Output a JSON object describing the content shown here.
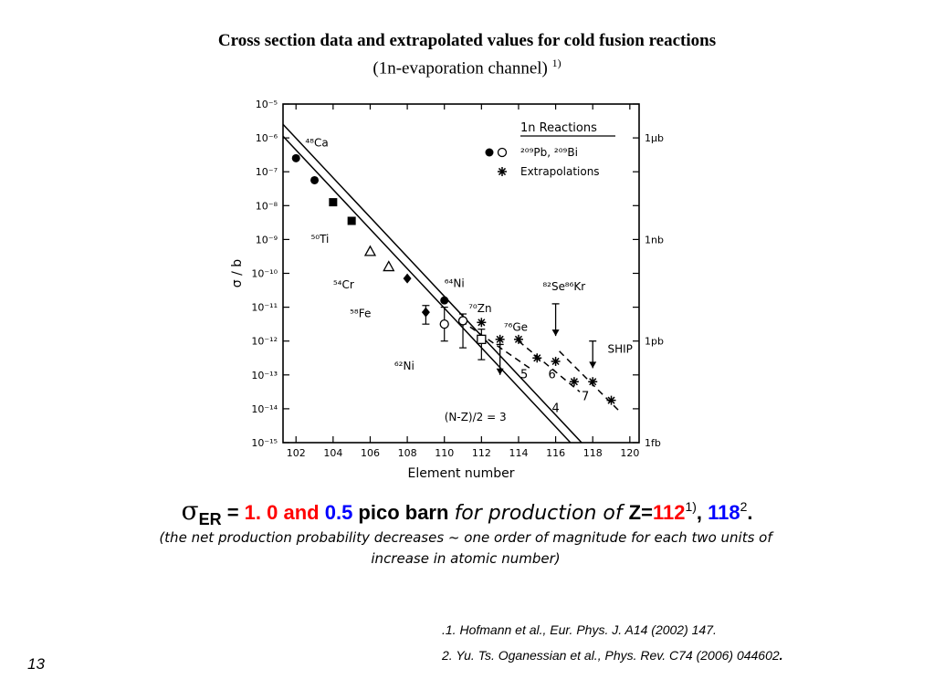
{
  "slide": {
    "title_line1": "Cross section data and extrapolated values for cold fusion reactions",
    "title_line2": "(1n-evaporation channel)",
    "title_line2_sup": "1)",
    "page_number": "13"
  },
  "summary": {
    "sigma_symbol": "σ",
    "sigma_sub": "ER",
    "equals": " = ",
    "value1": "1. 0",
    "and": " and ",
    "value2": "0.5",
    "unit": " pico barn ",
    "for_production": "for production of ",
    "z_label": "Z",
    "z_equals": "=",
    "z1": "112",
    "z1_sup": "1)",
    "comma": ", ",
    "z2": "118",
    "z2_sup": "2",
    "period": ".",
    "note_line1": "(the net production probability decreases ~ one order of magnitude for each two units of",
    "note_line2": "increase in atomic number)",
    "colors": {
      "red": "#ff0000",
      "blue": "#0000ff"
    }
  },
  "references": {
    "ref1": ".1. Hofmann et al., Eur. Phys. J.  A14 (2002) 147.",
    "ref2": "2. Yu. Ts. Oganessian et al., Phys. Rev.  C74 (2006) 044602",
    "ref2_end": "."
  },
  "chart_data": {
    "type": "scatter",
    "xlabel": "Element number",
    "ylabel": "σ / b",
    "xlim": [
      101.3,
      120.5
    ],
    "ylim_exponent": [
      -15,
      -5
    ],
    "x_ticks": [
      "102",
      "104",
      "106",
      "108",
      "110",
      "112",
      "114",
      "116",
      "118",
      "120"
    ],
    "y_ticks": [
      "10⁻⁵",
      "10⁻⁶",
      "10⁻⁷",
      "10⁻⁸",
      "10⁻⁹",
      "10⁻¹⁰",
      "10⁻¹¹",
      "10⁻¹²",
      "10⁻¹³",
      "10⁻¹⁴",
      "10⁻¹⁵"
    ],
    "right_ticks": [
      {
        "label": "1μb",
        "log": -6
      },
      {
        "label": "1nb",
        "log": -9
      },
      {
        "label": "1pb",
        "log": -12
      },
      {
        "label": "1fb",
        "log": -15
      }
    ],
    "legend": {
      "title": "1n Reactions",
      "item1": "²⁰⁹Pb, ²⁰⁹Bi",
      "item2": "Extrapolations",
      "placement": "top-right"
    },
    "projectiles": [
      {
        "label": "⁴⁸Ca",
        "x": 102.5,
        "log": -6.25
      },
      {
        "label": "⁵⁰Ti",
        "x": 102.8,
        "log": -9.1
      },
      {
        "label": "⁵⁴Cr",
        "x": 104.0,
        "log": -10.45
      },
      {
        "label": "⁶⁴Ni",
        "x": 110.0,
        "log": -10.4
      },
      {
        "label": "⁵⁸Fe",
        "x": 104.9,
        "log": -11.3
      },
      {
        "label": "⁷⁰Zn",
        "x": 111.3,
        "log": -11.15
      },
      {
        "label": "⁶²Ni",
        "x": 107.3,
        "log": -12.85
      },
      {
        "label": "⁷⁶Ge",
        "x": 113.2,
        "log": -11.7
      },
      {
        "label": "⁸²Se",
        "x": 115.3,
        "log": -10.5
      },
      {
        "label": "⁸⁶Kr",
        "x": 116.5,
        "log": -10.5
      }
    ],
    "annotations": [
      {
        "label": "(N-Z)/2 = 3",
        "x": 110.0,
        "log": -14.35
      },
      {
        "label": "SHIP",
        "x": 118.8,
        "log": -12.35
      }
    ],
    "line_labels": [
      {
        "label": "4",
        "x": 115.8,
        "log": -14.1
      },
      {
        "label": "5",
        "x": 114.1,
        "log": -13.1
      },
      {
        "label": "6",
        "x": 115.6,
        "log": -13.1
      },
      {
        "label": "7",
        "x": 117.4,
        "log": -13.75
      }
    ],
    "lines": {
      "solid": [
        {
          "x1": 101.3,
          "y1": -5.6,
          "x2": 117.4,
          "y2": -15.0
        },
        {
          "x1": 101.3,
          "y1": -5.95,
          "x2": 116.8,
          "y2": -15.0
        }
      ],
      "dashed": [
        {
          "x1": 110.9,
          "y1": -11.4,
          "x2": 114.6,
          "y2": -12.8
        },
        {
          "x1": 114.0,
          "y1": -12.0,
          "x2": 117.3,
          "y2": -13.5
        },
        {
          "x1": 116.2,
          "y1": -12.3,
          "x2": 119.4,
          "y2": -14.05
        }
      ]
    },
    "series": [
      {
        "name": "²⁰⁹Pb, ²⁰⁹Bi",
        "marker": "circle-filled",
        "points": [
          [
            102,
            -6.6
          ],
          [
            103,
            -7.25
          ]
        ]
      },
      {
        "marker": "square-filled",
        "points": [
          [
            104,
            -7.9
          ],
          [
            105,
            -8.45
          ]
        ]
      },
      {
        "marker": "triangle-open",
        "points": [
          [
            106,
            -9.35
          ],
          [
            107,
            -9.8
          ]
        ]
      },
      {
        "marker": "diamond-filled",
        "points": [
          [
            108,
            -10.15
          ]
        ]
      },
      {
        "marker": "circle-filled",
        "points": [
          [
            110,
            -10.8
          ]
        ]
      },
      {
        "marker": "circle-open",
        "points": [
          [
            110,
            -11.5
          ],
          [
            111,
            -11.4
          ]
        ]
      },
      {
        "marker": "square-open",
        "points": [
          [
            112,
            -11.95
          ]
        ]
      },
      {
        "marker": "diamond-filled",
        "points": [
          [
            109,
            -11.15
          ]
        ]
      },
      {
        "name": "Extrapolations",
        "marker": "asterisk",
        "points": [
          [
            112,
            -11.45
          ],
          [
            113,
            -11.95
          ],
          [
            114,
            -11.95
          ],
          [
            115,
            -12.5
          ],
          [
            116,
            -12.6
          ],
          [
            117,
            -13.2
          ],
          [
            118,
            -13.2
          ],
          [
            119,
            -13.75
          ]
        ]
      }
    ],
    "error_bars": [
      {
        "x": 109,
        "low": -11.5,
        "high": -10.95
      },
      {
        "x": 110,
        "low": -12.0,
        "high": -11.0
      },
      {
        "x": 111,
        "low": -12.2,
        "high": -11.2
      },
      {
        "x": 112,
        "low": -12.55,
        "high": -11.65
      }
    ],
    "limits": [
      {
        "x": 113,
        "from": -12.1,
        "to": -13.0
      },
      {
        "x": 116,
        "from": -10.9,
        "to": -11.85
      },
      {
        "x": 118,
        "from": -12.0,
        "to": -12.8
      }
    ]
  }
}
